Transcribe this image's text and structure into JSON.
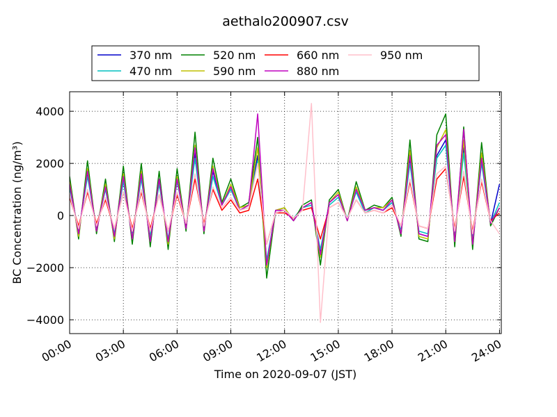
{
  "chart_data": {
    "type": "line",
    "title": "aethalo200907.csv",
    "x_label": "Time on 2020-09-07 (JST)",
    "y_label": "BC Concentration (ng/m³)",
    "x": [
      "00:00",
      "00:30",
      "01:00",
      "01:30",
      "02:00",
      "02:30",
      "03:00",
      "03:30",
      "04:00",
      "04:30",
      "05:00",
      "05:30",
      "06:00",
      "06:30",
      "07:00",
      "07:30",
      "08:00",
      "08:30",
      "09:00",
      "09:30",
      "10:00",
      "10:30",
      "11:00",
      "11:30",
      "12:00",
      "12:30",
      "13:00",
      "13:30",
      "14:00",
      "14:30",
      "15:00",
      "15:30",
      "16:00",
      "16:30",
      "17:00",
      "17:30",
      "18:00",
      "18:30",
      "19:00",
      "19:30",
      "20:00",
      "20:30",
      "21:00",
      "21:30",
      "22:00",
      "22:30",
      "23:00",
      "23:30",
      "24:00"
    ],
    "series": [
      {
        "name": "370 nm",
        "color": "#0000cc",
        "values": [
          1100,
          -700,
          1600,
          -500,
          1100,
          -800,
          1400,
          -800,
          1500,
          -900,
          1300,
          -1000,
          1400,
          -500,
          2400,
          -500,
          1700,
          400,
          1100,
          200,
          400,
          2300,
          -1800,
          200,
          200,
          -200,
          300,
          500,
          -1400,
          500,
          800,
          -200,
          1000,
          200,
          300,
          200,
          500,
          -600,
          2200,
          -700,
          -800,
          2300,
          2900,
          -900,
          2600,
          -1000,
          2100,
          -300,
          1200
        ]
      },
      {
        "name": "470 nm",
        "color": "#00bfbf",
        "values": [
          1100,
          -600,
          1500,
          -500,
          1000,
          -700,
          1300,
          -800,
          1400,
          -800,
          1200,
          -900,
          1300,
          -400,
          2200,
          -500,
          1500,
          400,
          1000,
          200,
          400,
          2100,
          -1700,
          100,
          200,
          -100,
          300,
          400,
          -1300,
          400,
          700,
          -100,
          900,
          100,
          300,
          200,
          500,
          -600,
          2000,
          -600,
          -700,
          2200,
          2700,
          -800,
          2400,
          -900,
          2000,
          -300,
          500
        ]
      },
      {
        "name": "520 nm",
        "color": "#008000",
        "values": [
          1500,
          -900,
          2100,
          -700,
          1400,
          -1000,
          1900,
          -1100,
          2000,
          -1200,
          1700,
          -1300,
          1800,
          -600,
          3200,
          -700,
          2200,
          500,
          1400,
          300,
          500,
          3000,
          -2400,
          200,
          300,
          -200,
          400,
          600,
          -1900,
          600,
          1000,
          -200,
          1300,
          200,
          400,
          300,
          700,
          -800,
          2900,
          -900,
          -1000,
          3100,
          3900,
          -1200,
          3400,
          -1300,
          2800,
          -400,
          300
        ]
      },
      {
        "name": "590 nm",
        "color": "#bfbf00",
        "values": [
          1300,
          -800,
          1800,
          -600,
          1200,
          -900,
          1600,
          -900,
          1700,
          -1000,
          1400,
          -1100,
          1500,
          -500,
          2700,
          -600,
          1900,
          400,
          1200,
          300,
          400,
          2600,
          -2000,
          200,
          300,
          -200,
          300,
          500,
          -1600,
          500,
          900,
          -200,
          1100,
          200,
          300,
          300,
          600,
          -700,
          2500,
          -800,
          -900,
          2600,
          3300,
          -1000,
          2900,
          -1100,
          2400,
          -300,
          300
        ]
      },
      {
        "name": "660 nm",
        "color": "#ff0000",
        "values": [
          700,
          -400,
          900,
          -300,
          600,
          -500,
          900,
          -500,
          900,
          -500,
          800,
          -600,
          800,
          -300,
          1400,
          -300,
          1000,
          200,
          600,
          100,
          200,
          1400,
          -1100,
          100,
          100,
          -100,
          200,
          300,
          -900,
          300,
          500,
          -100,
          600,
          100,
          200,
          100,
          300,
          -400,
          1300,
          -400,
          -500,
          1400,
          1800,
          -500,
          1500,
          -600,
          1300,
          -200,
          100
        ]
      },
      {
        "name": "880 nm",
        "color": "#bf00bf",
        "values": [
          1200,
          -700,
          1700,
          -600,
          1100,
          -800,
          1500,
          -900,
          1600,
          -1000,
          1400,
          -1000,
          1400,
          -500,
          2600,
          -600,
          1800,
          400,
          1100,
          200,
          400,
          3900,
          -1900,
          200,
          200,
          -200,
          300,
          500,
          -1500,
          500,
          800,
          -200,
          1000,
          200,
          300,
          200,
          600,
          -700,
          2300,
          -700,
          -800,
          2700,
          3100,
          -1000,
          3300,
          -1100,
          2200,
          -300,
          300
        ]
      },
      {
        "name": "950 nm",
        "color": "#ffc0cb",
        "values": [
          800,
          -500,
          1000,
          -400,
          700,
          -500,
          900,
          -600,
          1000,
          -600,
          800,
          -600,
          900,
          -300,
          1600,
          -400,
          1100,
          300,
          700,
          200,
          300,
          2000,
          -1100,
          100,
          200,
          -100,
          200,
          4300,
          -4100,
          300,
          500,
          -100,
          600,
          100,
          200,
          100,
          400,
          -400,
          1400,
          -400,
          -500,
          1600,
          1900,
          -600,
          1700,
          -700,
          1400,
          -200,
          -700
        ]
      }
    ],
    "xlim": [
      "00:00",
      "24:06"
    ],
    "xticks": [
      "00:00",
      "03:00",
      "06:00",
      "09:00",
      "12:00",
      "15:00",
      "18:00",
      "21:00",
      "24:00"
    ],
    "ylim": [
      -4530,
      4750
    ],
    "yticks": [
      {
        "value": -4000,
        "label": "−4000"
      },
      {
        "value": -2000,
        "label": "−2000"
      },
      0,
      2000,
      4000
    ],
    "grid": true,
    "legend": "top"
  }
}
